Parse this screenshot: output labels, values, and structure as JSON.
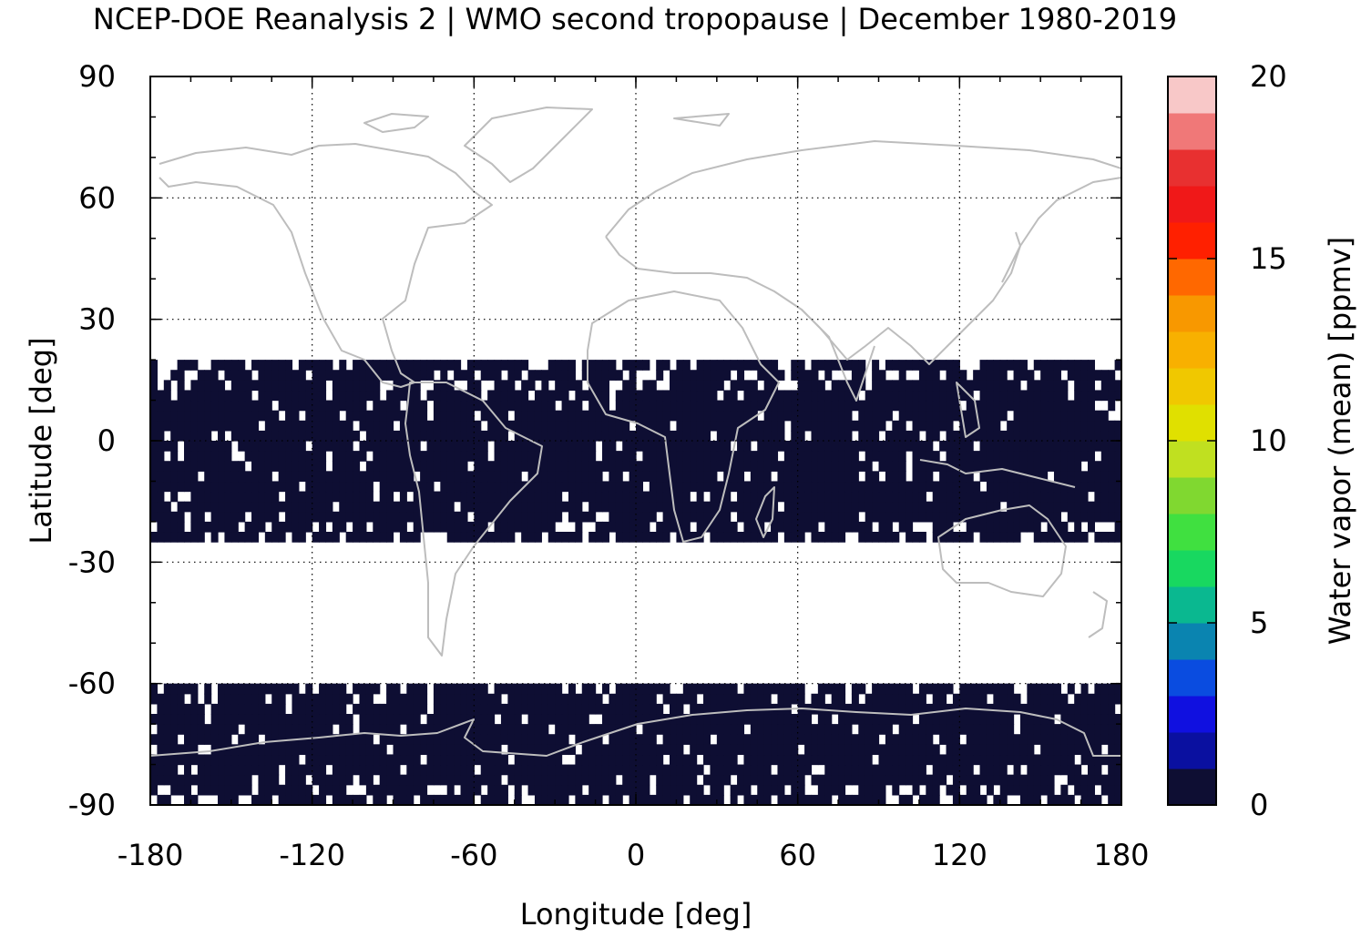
{
  "chart_data": {
    "type": "heatmap",
    "title": "NCEP-DOE Reanalysis 2 | WMO second tropopause | December 1980-2019",
    "xlabel": "Longitude [deg]",
    "ylabel": "Latitude [deg]",
    "xlim": [
      -180,
      180
    ],
    "ylim": [
      -90,
      90
    ],
    "xticks": [
      "-180",
      "-120",
      "-60",
      "0",
      "60",
      "120",
      "180"
    ],
    "yticks": [
      "90",
      "60",
      "30",
      "0",
      "-30",
      "-60",
      "-90"
    ],
    "grid": true,
    "grid_style": "dotted",
    "coastlines": true,
    "fill_color": "#0e0e33",
    "colorbar": {
      "label": "Water vapor (mean) [ppmv]",
      "range": [
        0,
        20
      ],
      "ticks": [
        "0",
        "5",
        "10",
        "15",
        "20"
      ],
      "colors": [
        "#0e0e33",
        "#0a10a0",
        "#1010e0",
        "#0a4ce0",
        "#0a84b0",
        "#0ab890",
        "#18d860",
        "#40e040",
        "#80d830",
        "#c0e020",
        "#e0e000",
        "#f0c800",
        "#f8b000",
        "#f89800",
        "#ff6800",
        "#ff2000",
        "#f01818",
        "#e83030",
        "#f07878",
        "#f8c8c8"
      ]
    },
    "data_regions": [
      {
        "name": "tropics",
        "lat_range": [
          -25,
          18
        ],
        "lon_range": [
          -180,
          180
        ],
        "value_ppmv": 0
      },
      {
        "name": "southern-high-latitudes",
        "lat_range": [
          -90,
          -60
        ],
        "lon_range": [
          -180,
          180
        ],
        "value_ppmv": 0
      }
    ]
  }
}
